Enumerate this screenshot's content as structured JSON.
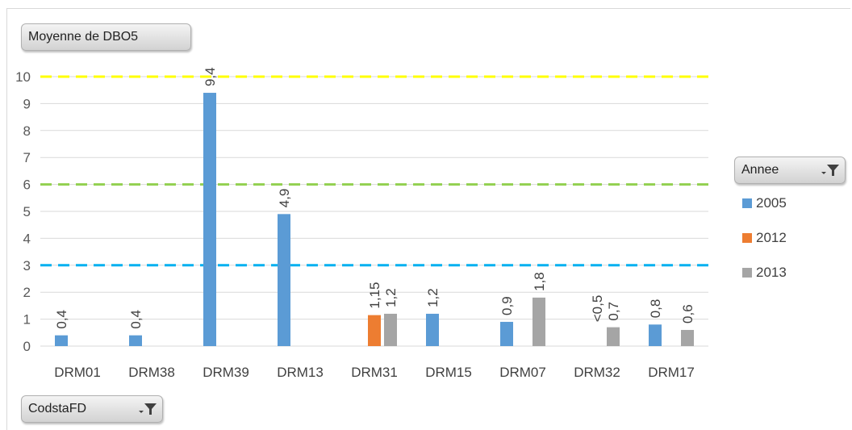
{
  "value_field_button": {
    "label": "Moyenne de DBO5"
  },
  "axis_field_button": {
    "label": "CodstaFD"
  },
  "legend": {
    "title": "Annee",
    "items": [
      {
        "label": "2005",
        "color": "#5b9bd5"
      },
      {
        "label": "2012",
        "color": "#ed7d31"
      },
      {
        "label": "2013",
        "color": "#a5a5a5"
      }
    ]
  },
  "chart_data": {
    "type": "bar",
    "categories": [
      "DRM01",
      "DRM38",
      "DRM39",
      "DRM13",
      "DRM31",
      "DRM15",
      "DRM07",
      "DRM32",
      "DRM17"
    ],
    "series": [
      {
        "name": "2005",
        "color": "#5b9bd5",
        "values": [
          0.4,
          0.4,
          9.4,
          4.9,
          null,
          1.2,
          0.9,
          null,
          0.8
        ]
      },
      {
        "name": "2012",
        "color": "#ed7d31",
        "values": [
          null,
          null,
          null,
          null,
          1.15,
          null,
          null,
          null,
          null
        ]
      },
      {
        "name": "2013",
        "color": "#a5a5a5",
        "values": [
          null,
          null,
          null,
          null,
          1.2,
          null,
          1.8,
          0.7,
          0.6
        ]
      }
    ],
    "data_labels": [
      {
        "category": "DRM01",
        "series": "2005",
        "text": "0,4"
      },
      {
        "category": "DRM38",
        "series": "2005",
        "text": "0,4"
      },
      {
        "category": "DRM39",
        "series": "2005",
        "text": "9,4"
      },
      {
        "category": "DRM13",
        "series": "2005",
        "text": "4,9"
      },
      {
        "category": "DRM31",
        "series": "2012",
        "text": "1,15"
      },
      {
        "category": "DRM31",
        "series": "2013",
        "text": "1,2"
      },
      {
        "category": "DRM15",
        "series": "2005",
        "text": "1,2"
      },
      {
        "category": "DRM07",
        "series": "2005",
        "text": "0,9"
      },
      {
        "category": "DRM07",
        "series": "2013",
        "text": "1,8"
      },
      {
        "category": "DRM32",
        "series": "2012",
        "text": "<0,5"
      },
      {
        "category": "DRM32",
        "series": "2013",
        "text": "0,7"
      },
      {
        "category": "DRM17",
        "series": "2005",
        "text": "0,8"
      },
      {
        "category": "DRM17",
        "series": "2013",
        "text": "0,6"
      }
    ],
    "yticks": [
      "0",
      "1",
      "2",
      "3",
      "4",
      "5",
      "6",
      "7",
      "8",
      "9",
      "10"
    ],
    "ylim": [
      0,
      10
    ],
    "grid": true,
    "legend_position": "right",
    "reference_lines": [
      {
        "value": 10,
        "color": "#ffff00",
        "style": "dashed"
      },
      {
        "value": 6,
        "color": "#92d050",
        "style": "dashed"
      },
      {
        "value": 3,
        "color": "#00b0f0",
        "style": "dashed"
      }
    ]
  }
}
